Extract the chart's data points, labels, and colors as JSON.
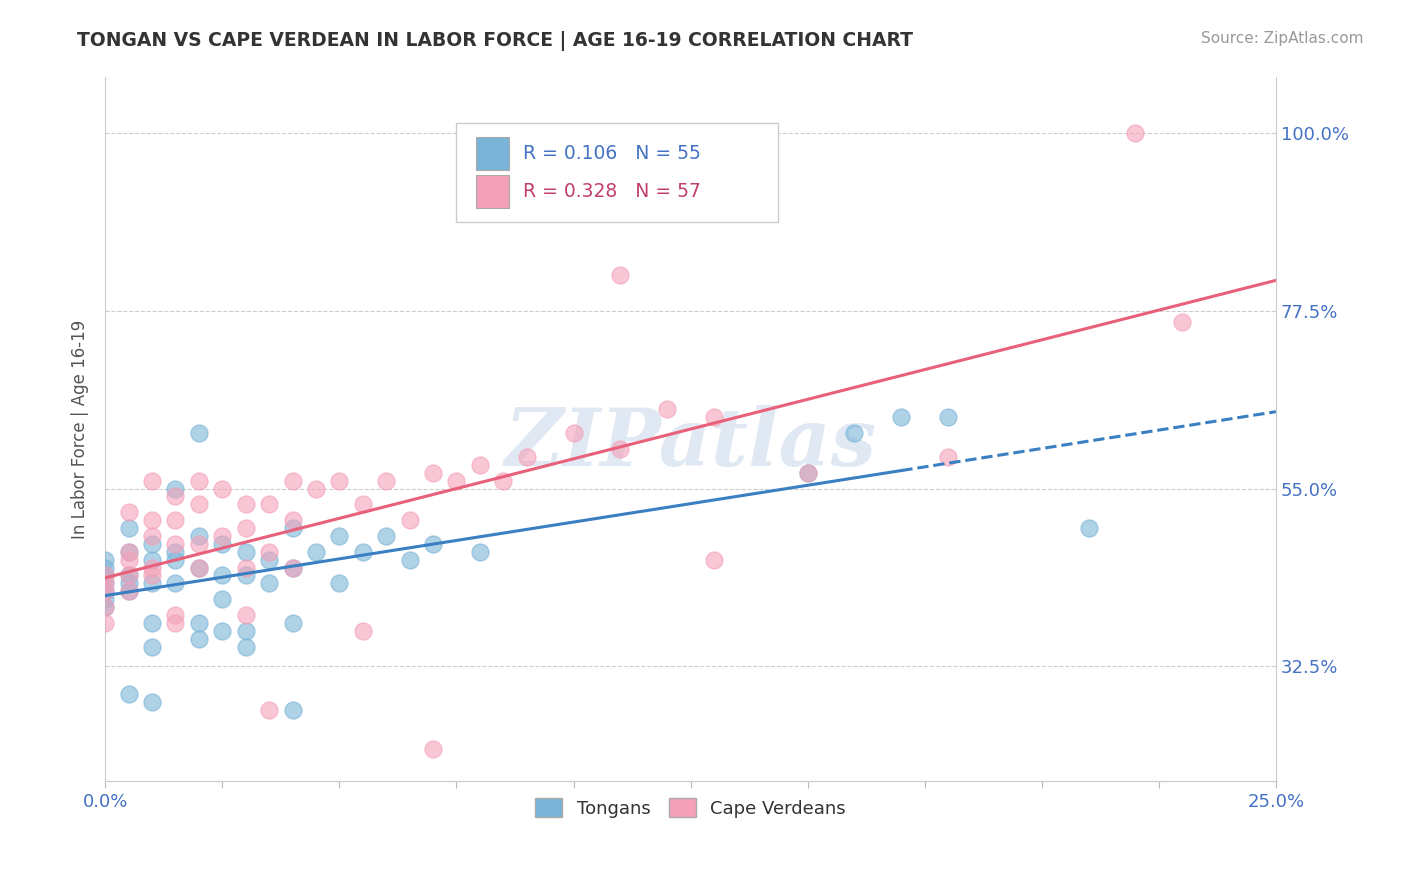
{
  "title": "TONGAN VS CAPE VERDEAN IN LABOR FORCE | AGE 16-19 CORRELATION CHART",
  "source": "Source: ZipAtlas.com",
  "ylabel": "In Labor Force | Age 16-19",
  "ytick_labels": [
    "32.5%",
    "55.0%",
    "77.5%",
    "100.0%"
  ],
  "ytick_values": [
    0.325,
    0.55,
    0.775,
    1.0
  ],
  "xlim": [
    0.0,
    0.25
  ],
  "ylim": [
    0.18,
    1.07
  ],
  "watermark": "ZIPatlas",
  "tongan_color": "#7ab4d8",
  "cape_verdean_color": "#f4a0b8",
  "tongan_line_color": "#3a7fc1",
  "cape_verdean_line_color": "#e8607a",
  "tongans_scatter": [
    [
      0.0,
      0.44
    ],
    [
      0.0,
      0.43
    ],
    [
      0.0,
      0.42
    ],
    [
      0.0,
      0.45
    ],
    [
      0.0,
      0.41
    ],
    [
      0.0,
      0.4
    ],
    [
      0.0,
      0.46
    ],
    [
      0.005,
      0.44
    ],
    [
      0.005,
      0.42
    ],
    [
      0.005,
      0.47
    ],
    [
      0.005,
      0.43
    ],
    [
      0.005,
      0.5
    ],
    [
      0.01,
      0.46
    ],
    [
      0.01,
      0.48
    ],
    [
      0.01,
      0.43
    ],
    [
      0.01,
      0.38
    ],
    [
      0.01,
      0.35
    ],
    [
      0.015,
      0.55
    ],
    [
      0.015,
      0.46
    ],
    [
      0.015,
      0.47
    ],
    [
      0.015,
      0.43
    ],
    [
      0.02,
      0.62
    ],
    [
      0.02,
      0.49
    ],
    [
      0.02,
      0.45
    ],
    [
      0.02,
      0.38
    ],
    [
      0.02,
      0.36
    ],
    [
      0.025,
      0.48
    ],
    [
      0.025,
      0.44
    ],
    [
      0.025,
      0.41
    ],
    [
      0.025,
      0.37
    ],
    [
      0.03,
      0.47
    ],
    [
      0.03,
      0.44
    ],
    [
      0.03,
      0.37
    ],
    [
      0.03,
      0.35
    ],
    [
      0.035,
      0.46
    ],
    [
      0.035,
      0.43
    ],
    [
      0.04,
      0.5
    ],
    [
      0.04,
      0.45
    ],
    [
      0.04,
      0.38
    ],
    [
      0.045,
      0.47
    ],
    [
      0.05,
      0.49
    ],
    [
      0.05,
      0.43
    ],
    [
      0.055,
      0.47
    ],
    [
      0.06,
      0.49
    ],
    [
      0.065,
      0.46
    ],
    [
      0.07,
      0.48
    ],
    [
      0.08,
      0.47
    ],
    [
      0.15,
      0.57
    ],
    [
      0.16,
      0.62
    ],
    [
      0.17,
      0.64
    ],
    [
      0.18,
      0.64
    ],
    [
      0.21,
      0.5
    ],
    [
      0.005,
      0.29
    ],
    [
      0.01,
      0.28
    ],
    [
      0.04,
      0.27
    ]
  ],
  "cape_verdean_scatter": [
    [
      0.0,
      0.43
    ],
    [
      0.0,
      0.44
    ],
    [
      0.0,
      0.42
    ],
    [
      0.0,
      0.4
    ],
    [
      0.0,
      0.38
    ],
    [
      0.005,
      0.46
    ],
    [
      0.005,
      0.44
    ],
    [
      0.005,
      0.42
    ],
    [
      0.005,
      0.47
    ],
    [
      0.005,
      0.52
    ],
    [
      0.01,
      0.56
    ],
    [
      0.01,
      0.51
    ],
    [
      0.01,
      0.49
    ],
    [
      0.01,
      0.45
    ],
    [
      0.01,
      0.44
    ],
    [
      0.015,
      0.54
    ],
    [
      0.015,
      0.51
    ],
    [
      0.015,
      0.48
    ],
    [
      0.015,
      0.39
    ],
    [
      0.015,
      0.38
    ],
    [
      0.02,
      0.56
    ],
    [
      0.02,
      0.53
    ],
    [
      0.02,
      0.48
    ],
    [
      0.02,
      0.45
    ],
    [
      0.025,
      0.55
    ],
    [
      0.025,
      0.49
    ],
    [
      0.03,
      0.53
    ],
    [
      0.03,
      0.5
    ],
    [
      0.03,
      0.45
    ],
    [
      0.03,
      0.39
    ],
    [
      0.035,
      0.53
    ],
    [
      0.035,
      0.47
    ],
    [
      0.04,
      0.56
    ],
    [
      0.04,
      0.51
    ],
    [
      0.04,
      0.45
    ],
    [
      0.045,
      0.55
    ],
    [
      0.05,
      0.56
    ],
    [
      0.055,
      0.53
    ],
    [
      0.055,
      0.37
    ],
    [
      0.06,
      0.56
    ],
    [
      0.065,
      0.51
    ],
    [
      0.07,
      0.57
    ],
    [
      0.075,
      0.56
    ],
    [
      0.08,
      0.58
    ],
    [
      0.085,
      0.56
    ],
    [
      0.09,
      0.59
    ],
    [
      0.1,
      0.62
    ],
    [
      0.11,
      0.6
    ],
    [
      0.12,
      0.65
    ],
    [
      0.13,
      0.64
    ],
    [
      0.035,
      0.27
    ],
    [
      0.13,
      0.46
    ],
    [
      0.15,
      0.57
    ],
    [
      0.18,
      0.59
    ],
    [
      0.07,
      0.22
    ],
    [
      0.22,
      1.0
    ],
    [
      0.11,
      0.82
    ],
    [
      0.23,
      0.76
    ]
  ]
}
